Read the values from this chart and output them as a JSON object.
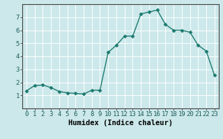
{
  "x": [
    0,
    1,
    2,
    3,
    4,
    5,
    6,
    7,
    8,
    9,
    10,
    11,
    12,
    13,
    14,
    15,
    16,
    17,
    18,
    19,
    20,
    21,
    22,
    23
  ],
  "y": [
    1.35,
    1.75,
    1.8,
    1.6,
    1.3,
    1.2,
    1.15,
    1.1,
    1.4,
    1.4,
    4.3,
    4.85,
    5.55,
    5.55,
    7.25,
    7.4,
    7.55,
    6.45,
    6.0,
    6.0,
    5.85,
    4.85,
    4.4,
    2.55
  ],
  "line_color": "#1a7a6e",
  "marker": "D",
  "marker_size": 2.5,
  "bg_color": "#cce8ea",
  "grid_color": "#ffffff",
  "xlabel": "Humidex (Indice chaleur)",
  "xlim": [
    -0.5,
    23.5
  ],
  "ylim": [
    0,
    8
  ],
  "yticks": [
    1,
    2,
    3,
    4,
    5,
    6,
    7
  ],
  "xticks": [
    0,
    1,
    2,
    3,
    4,
    5,
    6,
    7,
    8,
    9,
    10,
    11,
    12,
    13,
    14,
    15,
    16,
    17,
    18,
    19,
    20,
    21,
    22,
    23
  ],
  "font_size": 6.5,
  "xlabel_fontsize": 7.5,
  "line_width": 1.0,
  "grid_linewidth": 0.7
}
